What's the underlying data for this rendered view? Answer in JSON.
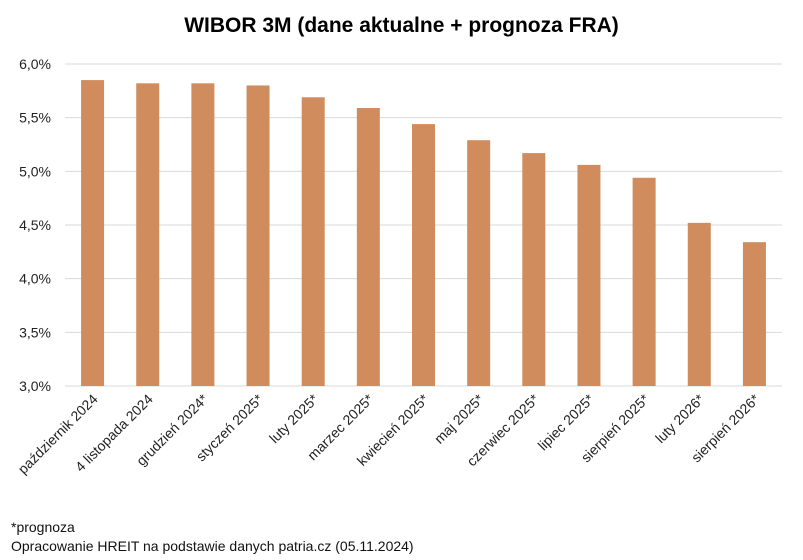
{
  "chart_data": {
    "type": "bar",
    "title": "WIBOR 3M (dane aktualne + prognoza FRA)",
    "categories": [
      "październik 2024",
      "4 listopada 2024",
      "grudzień 2024*",
      "styczeń 2025*",
      "luty 2025*",
      "marzec 2025*",
      "kwiecień 2025*",
      "maj 2025*",
      "czerwiec 2025*",
      "lipiec 2025*",
      "sierpień 2025*",
      "luty 2026*",
      "sierpień 2026*"
    ],
    "values": [
      5.85,
      5.82,
      5.82,
      5.8,
      5.69,
      5.59,
      5.44,
      5.29,
      5.17,
      5.06,
      4.94,
      4.52,
      4.34
    ],
    "ylim": [
      3.0,
      6.0
    ],
    "yticks": [
      3.0,
      3.5,
      4.0,
      4.5,
      5.0,
      5.5,
      6.0
    ],
    "ytick_labels": [
      "3,0%",
      "3,5%",
      "4,0%",
      "4,5%",
      "5,0%",
      "5,5%",
      "6,0%"
    ],
    "xlabel": "",
    "ylabel": "",
    "grid": true,
    "legend": "none",
    "bar_color": "#d08c5c"
  },
  "footnotes": {
    "forecast": "*prognoza",
    "source": "Opracowanie HREIT na podstawie danych patria.cz (05.11.2024)"
  }
}
